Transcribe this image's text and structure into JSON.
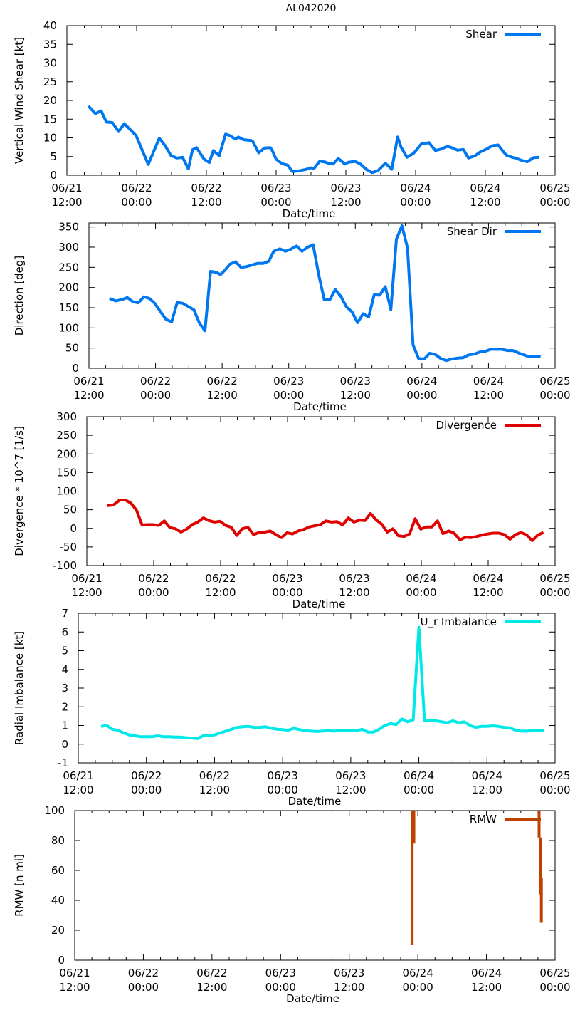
{
  "title": "AL042020",
  "chart_data": [
    {
      "type": "line",
      "id": "shear",
      "ylabel": "Vertical Wind Shear [kt]",
      "xlabel": "Date/time",
      "ylim": [
        0,
        40
      ],
      "yticks": [
        0,
        5,
        10,
        15,
        20,
        25,
        30,
        35,
        40
      ],
      "xlim": [
        0,
        84
      ],
      "xticks": [
        {
          "value": 0,
          "date": "06/21",
          "time": "12:00"
        },
        {
          "value": 12,
          "date": "06/22",
          "time": "00:00"
        },
        {
          "value": 24,
          "date": "06/22",
          "time": "12:00"
        },
        {
          "value": 36,
          "date": "06/23",
          "time": "00:00"
        },
        {
          "value": 48,
          "date": "06/23",
          "time": "12:00"
        },
        {
          "value": 60,
          "date": "06/24",
          "time": "00:00"
        },
        {
          "value": 72,
          "date": "06/24",
          "time": "12:00"
        },
        {
          "value": 84,
          "date": "06/25",
          "time": "00:00"
        }
      ],
      "series": [
        {
          "name": "Shear",
          "color": "#0077f0",
          "x": [
            3.7,
            4.9,
            5.9,
            6.8,
            7.8,
            8.9,
            9.9,
            11.9,
            14,
            15.9,
            16.9,
            17.9,
            18.9,
            19.9,
            20.9,
            21.6,
            22.3,
            23.6,
            24.5,
            25.2,
            26.2,
            27.3,
            28,
            29,
            29.5,
            30.4,
            31.7,
            32,
            33,
            34,
            35,
            35.3,
            36,
            37,
            38,
            38.8,
            40,
            41,
            42,
            42.5,
            43.5,
            44.5,
            45,
            45.8,
            46.7,
            47.8,
            48.5,
            49.6,
            50.5,
            51.5,
            52.5,
            53.5,
            54.8,
            55.9,
            56.9,
            57.5,
            58.5,
            59,
            59.6,
            60,
            61,
            62.3,
            63.4,
            64.4,
            65.4,
            66,
            67.2,
            68.2,
            69.1,
            70.2,
            71.2,
            72.2,
            73.2,
            74.2,
            75,
            75.6,
            76.6,
            77.2,
            78.2,
            79.2,
            80.3,
            81.2
          ],
          "values": [
            18.5,
            16.5,
            17.2,
            14.2,
            14.1,
            11.7,
            13.8,
            10.6,
            2.9,
            9.9,
            7.9,
            5.3,
            4.6,
            4.8,
            1.7,
            6.8,
            7.4,
            4.3,
            3.4,
            6.6,
            5.2,
            11,
            10.6,
            9.7,
            10.2,
            9.5,
            9.3,
            9,
            6,
            7.3,
            7.4,
            6.7,
            4.3,
            3.1,
            2.7,
            1,
            1.2,
            1.5,
            2,
            1.8,
            3.8,
            3.5,
            3.2,
            3,
            4.5,
            3,
            3.5,
            3.7,
            3,
            1.6,
            0.7,
            1.2,
            3.2,
            1.6,
            10.2,
            7.5,
            4.8,
            5.3,
            5.8,
            6.5,
            8.4,
            8.7,
            6.6,
            7,
            7.7,
            7.5,
            6.7,
            6.9,
            4.6,
            5.2,
            6.3,
            7,
            7.9,
            8.1,
            6.5,
            5.4,
            4.8,
            4.6,
            4,
            3.6,
            4.7,
            4.8
          ]
        }
      ]
    },
    {
      "type": "line",
      "id": "shear-dir",
      "ylabel": "Direction [deg]",
      "xlabel": "Date/time",
      "ylim": [
        0,
        360
      ],
      "yticks": [
        0,
        50,
        100,
        150,
        200,
        250,
        300,
        350
      ],
      "xlim": [
        0,
        84
      ],
      "xticks": [
        {
          "value": 0,
          "date": "06/21",
          "time": "12:00"
        },
        {
          "value": 12,
          "date": "06/22",
          "time": "00:00"
        },
        {
          "value": 24,
          "date": "06/22",
          "time": "12:00"
        },
        {
          "value": 36,
          "date": "06/23",
          "time": "00:00"
        },
        {
          "value": 48,
          "date": "06/23",
          "time": "12:00"
        },
        {
          "value": 60,
          "date": "06/24",
          "time": "00:00"
        },
        {
          "value": 72,
          "date": "06/24",
          "time": "12:00"
        },
        {
          "value": 84,
          "date": "06/25",
          "time": "00:00"
        }
      ],
      "series": [
        {
          "name": "Shear Dir",
          "color": "#0077f0",
          "x": [
            3.7,
            4.8,
            5.9,
            6.9,
            7.9,
            8.9,
            9.9,
            10.9,
            11.9,
            12.9,
            13.9,
            14.9,
            15.9,
            16.9,
            17.9,
            18.9,
            19.9,
            20.9,
            21.9,
            22.9,
            23.7,
            24.5,
            25.4,
            26.4,
            27.4,
            28.4,
            29.4,
            30.4,
            31.4,
            32.4,
            33.3,
            34.4,
            35.4,
            36.4,
            37.4,
            38.4,
            39.4,
            40.4,
            41.4,
            42.4,
            43.4,
            44.4,
            45.4,
            46.4,
            47.4,
            48.4,
            49.4,
            50.4,
            51.4,
            52.4,
            53.4,
            54.4,
            55.4,
            56.4,
            57.4,
            58.4,
            59.4,
            60.4,
            61.4,
            62.4,
            63.4,
            64.4,
            65.4,
            66.4,
            67.4,
            68.4,
            69.4,
            70.4,
            71.4,
            72.4,
            73.4,
            74.4,
            75.4,
            76.4,
            77.4,
            78.4,
            79.4,
            80.4,
            81.4
          ],
          "values": [
            173,
            167,
            170,
            175,
            165,
            162,
            177,
            173,
            160,
            140,
            121,
            115,
            163,
            161,
            153,
            145,
            112,
            93,
            240,
            238,
            232,
            243,
            258,
            264,
            250,
            252,
            256,
            260,
            260,
            265,
            290,
            296,
            290,
            295,
            303,
            290,
            300,
            306,
            232,
            170,
            170,
            195,
            178,
            152,
            140,
            113,
            135,
            127,
            182,
            181,
            202,
            145,
            320,
            353,
            298,
            58,
            24,
            23,
            37,
            34,
            24,
            19,
            23,
            25,
            26,
            33,
            35,
            40,
            42,
            47,
            47,
            47,
            44,
            44,
            38,
            33,
            28,
            30,
            30
          ]
        }
      ]
    },
    {
      "type": "line",
      "id": "divergence",
      "ylabel": "Divergence * 10^7 [1/s]",
      "xlabel": "Date/time",
      "ylim": [
        -100,
        300
      ],
      "yticks": [
        -100,
        -50,
        0,
        50,
        100,
        150,
        200,
        250,
        300
      ],
      "xlim": [
        0,
        84
      ],
      "xticks": [
        {
          "value": 0,
          "date": "06/21",
          "time": "12:00"
        },
        {
          "value": 12,
          "date": "06/22",
          "time": "00:00"
        },
        {
          "value": 24,
          "date": "06/22",
          "time": "12:00"
        },
        {
          "value": 36,
          "date": "06/23",
          "time": "00:00"
        },
        {
          "value": 48,
          "date": "06/23",
          "time": "12:00"
        },
        {
          "value": 60,
          "date": "06/24",
          "time": "00:00"
        },
        {
          "value": 72,
          "date": "06/24",
          "time": "12:00"
        },
        {
          "value": 84,
          "date": "06/25",
          "time": "00:00"
        }
      ],
      "series": [
        {
          "name": "Divergence",
          "color": "#e00000",
          "x": [
            3.7,
            4.8,
            5.9,
            6.9,
            7.9,
            8.9,
            9.9,
            10.9,
            11.9,
            12.9,
            13.9,
            14.9,
            15.9,
            16.9,
            17.9,
            18.9,
            19.9,
            20.9,
            21.9,
            22.9,
            23.9,
            24.9,
            25.9,
            26.9,
            27.9,
            28.9,
            29.9,
            30.9,
            31.9,
            32.9,
            33.9,
            34.9,
            35.9,
            36.9,
            37.9,
            38.9,
            39.9,
            40.9,
            41.9,
            42.9,
            43.9,
            44.9,
            45.9,
            46.9,
            47.9,
            48.9,
            49.9,
            50.9,
            51.9,
            52.9,
            53.9,
            54.9,
            55.9,
            56.9,
            57.9,
            58.9,
            59.9,
            60.9,
            61.9,
            62.9,
            63.9,
            64.9,
            65.9,
            66.9,
            67.9,
            68.9,
            69.9,
            70.9,
            71.9,
            72.9,
            73.9,
            74.9,
            75.9,
            76.9,
            77.9,
            78.9,
            79.9,
            80.9,
            81.9
          ],
          "values": [
            61,
            63,
            76,
            76,
            68,
            49,
            9,
            10,
            10,
            8,
            20,
            2,
            -1,
            -10,
            -2,
            10,
            17,
            28,
            21,
            17,
            19,
            8,
            3,
            -19,
            -1,
            3,
            -17,
            -11,
            -10,
            -7,
            -17,
            -25,
            -12,
            -15,
            -7,
            -3,
            4,
            7,
            10,
            20,
            17,
            18,
            9,
            28,
            17,
            22,
            21,
            40,
            23,
            11,
            -10,
            -1,
            -20,
            -22,
            -15,
            26,
            -2,
            4,
            4,
            20,
            -14,
            -7,
            -13,
            -31,
            -24,
            -25,
            -22,
            -18,
            -15,
            -13,
            -13,
            -17,
            -29,
            -17,
            -11,
            -18,
            -33,
            -18,
            -11
          ]
        }
      ]
    },
    {
      "type": "line",
      "id": "radial-imbalance",
      "ylabel": "Radial Imbalance [kt]",
      "xlabel": "Date/time",
      "ylim": [
        -1,
        7
      ],
      "yticks": [
        -1,
        0,
        1,
        2,
        3,
        4,
        5,
        6,
        7
      ],
      "xlim": [
        0,
        84
      ],
      "xticks": [
        {
          "value": 0,
          "date": "06/21",
          "time": "12:00"
        },
        {
          "value": 12,
          "date": "06/22",
          "time": "00:00"
        },
        {
          "value": 24,
          "date": "06/22",
          "time": "12:00"
        },
        {
          "value": 36,
          "date": "06/23",
          "time": "00:00"
        },
        {
          "value": 48,
          "date": "06/23",
          "time": "12:00"
        },
        {
          "value": 60,
          "date": "06/24",
          "time": "00:00"
        },
        {
          "value": 72,
          "date": "06/24",
          "time": "12:00"
        },
        {
          "value": 84,
          "date": "06/25",
          "time": "00:00"
        }
      ],
      "series": [
        {
          "name": "U_r Imbalance",
          "color": "#00e8e8",
          "x": [
            4,
            5,
            6,
            7,
            8,
            9,
            10,
            11,
            12,
            13,
            14,
            15,
            16,
            17,
            18,
            19,
            20,
            21,
            22,
            23,
            24,
            25,
            26,
            27,
            28,
            29,
            30,
            31,
            32,
            33,
            34,
            35,
            36,
            37,
            38,
            39,
            40,
            41,
            42,
            43,
            44,
            45,
            46,
            47,
            48,
            49,
            50,
            51,
            52,
            53,
            54,
            55,
            56,
            57,
            58,
            59,
            60,
            61,
            62,
            63,
            64,
            65,
            66,
            67,
            68,
            69,
            70,
            71,
            72,
            73,
            74,
            75,
            76,
            77,
            78,
            79,
            80,
            81,
            82
          ],
          "values": [
            0.95,
            1,
            0.8,
            0.75,
            0.6,
            0.5,
            0.45,
            0.4,
            0.4,
            0.4,
            0.45,
            0.4,
            0.4,
            0.38,
            0.38,
            0.35,
            0.33,
            0.3,
            0.45,
            0.45,
            0.5,
            0.6,
            0.7,
            0.8,
            0.9,
            0.93,
            0.95,
            0.9,
            0.9,
            0.93,
            0.85,
            0.8,
            0.78,
            0.75,
            0.85,
            0.78,
            0.72,
            0.7,
            0.68,
            0.7,
            0.72,
            0.7,
            0.72,
            0.72,
            0.72,
            0.72,
            0.8,
            0.65,
            0.65,
            0.8,
            1,
            1.1,
            1.05,
            1.35,
            1.2,
            1.3,
            6.25,
            1.25,
            1.25,
            1.25,
            1.2,
            1.15,
            1.25,
            1.15,
            1.2,
            1,
            0.9,
            0.95,
            0.95,
            0.98,
            0.95,
            0.9,
            0.88,
            0.75,
            0.7,
            0.7,
            0.72,
            0.73,
            0.75
          ]
        }
      ]
    },
    {
      "type": "line",
      "id": "rmw",
      "ylabel": "RMW [n mi]",
      "xlabel": "Date/time",
      "ylim": [
        0,
        100
      ],
      "yticks": [
        0,
        20,
        40,
        60,
        80,
        100
      ],
      "xlim": [
        0,
        84
      ],
      "xticks": [
        {
          "value": 0,
          "date": "06/21",
          "time": "12:00"
        },
        {
          "value": 12,
          "date": "06/22",
          "time": "00:00"
        },
        {
          "value": 24,
          "date": "06/22",
          "time": "12:00"
        },
        {
          "value": 36,
          "date": "06/23",
          "time": "00:00"
        },
        {
          "value": 48,
          "date": "06/23",
          "time": "12:00"
        },
        {
          "value": 60,
          "date": "06/24",
          "time": "00:00"
        },
        {
          "value": 72,
          "date": "06/24",
          "time": "12:00"
        },
        {
          "value": 84,
          "date": "06/25",
          "time": "00:00"
        }
      ],
      "series": [
        {
          "name": "RMW",
          "color": "#c04000",
          "segments": [
            {
              "x": [
                59,
                59
              ],
              "values": [
                10,
                100
              ]
            },
            {
              "x": [
                59.3,
                59.3
              ],
              "values": [
                78,
                100
              ]
            },
            {
              "x": [
                81.2,
                81.2
              ],
              "values": [
                82,
                100
              ]
            },
            {
              "x": [
                81.4,
                81.4
              ],
              "values": [
                44,
                82
              ]
            },
            {
              "x": [
                81.6,
                81.6
              ],
              "values": [
                25,
                55
              ]
            }
          ]
        }
      ]
    }
  ]
}
